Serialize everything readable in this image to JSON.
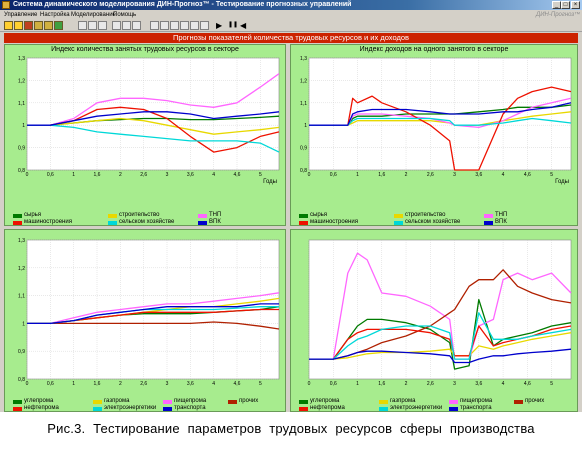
{
  "app": {
    "title": "Система динамического моделирования ДИН-Прогноз™ - Тестирование прогнозных управлений",
    "brand": "ДИН-Прогноз™"
  },
  "window_controls": {
    "minimize": "_",
    "maximize": "□",
    "close": "×"
  },
  "menu": [
    "Управление",
    "Настройка",
    "Моделирование",
    "Помощь"
  ],
  "toolbar": {
    "run": "▶",
    "pause": "❚❚",
    "back": "◀",
    "icons": [
      "open-icon",
      "save-icon",
      "print-icon",
      "settings-icon",
      "reload-icon",
      "chart-icon",
      "table-icon",
      "export-icon",
      "grid-icon",
      "list-icon",
      "copy-icon",
      "zoom-icon"
    ]
  },
  "header": "Прогнозы показателей количества трудовых ресурсов и их доходов",
  "panels": [
    {
      "title": "Индекс количества занятых трудовых ресурсов в секторе",
      "legend": [
        {
          "label": "сырья",
          "color": "#007a00"
        },
        {
          "label": "строительство",
          "color": "#e8d800"
        },
        {
          "label": "ТНП",
          "color": "#ff66ff"
        },
        {
          "label": "машиностроения",
          "color": "#ee1100"
        },
        {
          "label": "сельском хозяйстве",
          "color": "#00d8d8"
        },
        {
          "label": "ВПК",
          "color": "#0000cc"
        }
      ]
    },
    {
      "title": "Индекс доходов на одного занятого в секторе",
      "legend": [
        {
          "label": "сырья",
          "color": "#007a00"
        },
        {
          "label": "строительство",
          "color": "#e8d800"
        },
        {
          "label": "ТНП",
          "color": "#ff66ff"
        },
        {
          "label": "машиностроения",
          "color": "#ee1100"
        },
        {
          "label": "сельском хозяйстве",
          "color": "#00d8d8"
        },
        {
          "label": "ВПК",
          "color": "#0000cc"
        }
      ]
    },
    {
      "title": "",
      "legend": [
        {
          "label": "углепрома",
          "color": "#007a00"
        },
        {
          "label": "газпрома",
          "color": "#e8d800"
        },
        {
          "label": "пищепрома",
          "color": "#ff66ff"
        },
        {
          "label": "прочих",
          "color": "#b02000"
        },
        {
          "label": "нефтепрома",
          "color": "#ee1100"
        },
        {
          "label": "электроэнергетики",
          "color": "#00d8d8"
        },
        {
          "label": "транспорта",
          "color": "#0000cc"
        }
      ]
    },
    {
      "title": "",
      "legend": [
        {
          "label": "углепрома",
          "color": "#007a00"
        },
        {
          "label": "газпрома",
          "color": "#e8d800"
        },
        {
          "label": "пищепрома",
          "color": "#ff66ff"
        },
        {
          "label": "прочих",
          "color": "#b02000"
        },
        {
          "label": "нефтепрома",
          "color": "#ee1100"
        },
        {
          "label": "электроэнергетики",
          "color": "#00d8d8"
        },
        {
          "label": "транспорта",
          "color": "#0000cc"
        }
      ]
    }
  ],
  "chart_data": [
    {
      "type": "line",
      "title": "Индекс количества занятых трудовых ресурсов в секторе",
      "xlabel": "Годы",
      "ylabel": "",
      "xlim": [
        0,
        5.4
      ],
      "ylim": [
        0.8,
        1.3
      ],
      "xticks": [
        "0",
        "0,6",
        "1",
        "1,6",
        "2",
        "2,6",
        "3",
        "3,6",
        "4",
        "4,6",
        "5"
      ],
      "yticks": [
        "0,8",
        "0,9",
        "1",
        "1,1",
        "1,2",
        "1,3"
      ],
      "x": [
        0,
        0.5,
        1,
        1.5,
        2,
        2.5,
        3,
        3.5,
        4,
        4.5,
        5,
        5.4
      ],
      "series": [
        {
          "name": "сырья",
          "color": "#007a00",
          "values": [
            1,
            1,
            1.01,
            1.02,
            1.025,
            1.03,
            1.03,
            1.025,
            1.025,
            1.03,
            1.035,
            1.04
          ]
        },
        {
          "name": "строительство",
          "color": "#e8d800",
          "values": [
            1,
            1,
            1.01,
            1.02,
            1.03,
            1.02,
            1.0,
            0.98,
            0.96,
            0.97,
            0.98,
            0.99
          ]
        },
        {
          "name": "ТНП",
          "color": "#ff66ff",
          "values": [
            1,
            1,
            1.03,
            1.1,
            1.12,
            1.12,
            1.11,
            1.09,
            1.08,
            1.1,
            1.17,
            1.23
          ]
        },
        {
          "name": "машиностроения",
          "color": "#ee1100",
          "values": [
            1,
            1,
            1.02,
            1.07,
            1.08,
            1.07,
            1.03,
            0.95,
            0.88,
            0.9,
            0.95,
            0.97
          ]
        },
        {
          "name": "сельском хозяйстве",
          "color": "#00d8d8",
          "values": [
            1,
            1,
            0.99,
            0.97,
            0.96,
            0.95,
            0.94,
            0.93,
            0.93,
            0.93,
            0.92,
            0.88
          ]
        },
        {
          "name": "ВПК",
          "color": "#0000cc",
          "values": [
            1,
            1,
            1.02,
            1.04,
            1.05,
            1.06,
            1.06,
            1.05,
            1.03,
            1.04,
            1.05,
            1.06
          ]
        }
      ]
    },
    {
      "type": "line",
      "title": "Индекс доходов на одного занятого в секторе",
      "xlabel": "Годы",
      "ylabel": "",
      "xlim": [
        0,
        5.4
      ],
      "ylim": [
        0.8,
        1.3
      ],
      "xticks": [
        "0",
        "0,6",
        "1",
        "1,6",
        "2",
        "2,6",
        "3",
        "3,6",
        "4",
        "4,6",
        "5"
      ],
      "yticks": [
        "0,8",
        "0,9",
        "1",
        "1,1",
        "1,2",
        "1,3"
      ],
      "x": [
        0,
        0.5,
        0.8,
        0.9,
        1.0,
        1.3,
        1.5,
        2.0,
        2.5,
        2.9,
        3.0,
        3.5,
        4.0,
        4.3,
        4.6,
        5.0,
        5.4
      ],
      "series": [
        {
          "name": "сырья",
          "color": "#007a00",
          "values": [
            1,
            1,
            1,
            1.03,
            1.04,
            1.04,
            1.04,
            1.05,
            1.05,
            1.05,
            1.05,
            1.06,
            1.07,
            1.08,
            1.08,
            1.08,
            1.09
          ]
        },
        {
          "name": "строительство",
          "color": "#e8d800",
          "values": [
            1,
            1,
            1,
            1.01,
            1.02,
            1.02,
            1.02,
            1.02,
            1.02,
            1.01,
            1.0,
            1.0,
            1.02,
            1.03,
            1.04,
            1.05,
            1.06
          ]
        },
        {
          "name": "ТНП",
          "color": "#ff66ff",
          "values": [
            1,
            1,
            1,
            1.04,
            1.05,
            1.05,
            1.05,
            1.04,
            1.03,
            1.01,
            1.0,
            0.99,
            1.02,
            1.05,
            1.08,
            1.1,
            1.12
          ]
        },
        {
          "name": "машиностроения",
          "color": "#ee1100",
          "values": [
            1,
            1,
            1,
            1.12,
            1.1,
            1.13,
            1.1,
            1.06,
            1.0,
            0.93,
            0.8,
            0.8,
            1.05,
            1.12,
            1.15,
            1.17,
            1.15
          ]
        },
        {
          "name": "сельском хозяйстве",
          "color": "#00d8d8",
          "values": [
            1,
            1,
            1,
            1.02,
            1.03,
            1.03,
            1.03,
            1.03,
            1.03,
            1.02,
            1.0,
            1.0,
            1.01,
            1.02,
            1.03,
            1.02,
            1.01
          ]
        },
        {
          "name": "ВПК",
          "color": "#0000cc",
          "values": [
            1,
            1,
            1,
            1.05,
            1.06,
            1.07,
            1.07,
            1.07,
            1.06,
            1.05,
            1.05,
            1.05,
            1.06,
            1.06,
            1.07,
            1.08,
            1.1
          ]
        }
      ]
    },
    {
      "type": "line",
      "title": "",
      "xlabel": "",
      "ylabel": "",
      "xlim": [
        0,
        5.4
      ],
      "ylim": [
        0.8,
        1.3
      ],
      "xticks": [
        "0",
        "0,6",
        "1",
        "1,6",
        "2",
        "2,6",
        "3",
        "3,6",
        "4",
        "4,6",
        "5"
      ],
      "yticks": [
        "0,8",
        "0,9",
        "1",
        "1,1",
        "1,2",
        "1,3"
      ],
      "x": [
        0,
        0.5,
        1,
        1.5,
        2,
        2.5,
        3,
        3.5,
        4,
        4.5,
        5,
        5.4
      ],
      "series": [
        {
          "name": "углепрома",
          "color": "#007a00",
          "values": [
            1,
            1,
            1.01,
            1.02,
            1.03,
            1.035,
            1.035,
            1.035,
            1.04,
            1.045,
            1.05,
            1.06
          ]
        },
        {
          "name": "газпрома",
          "color": "#e8d800",
          "values": [
            1,
            1,
            1.01,
            1.02,
            1.03,
            1.04,
            1.05,
            1.06,
            1.06,
            1.07,
            1.08,
            1.09
          ]
        },
        {
          "name": "пищепрома",
          "color": "#ff66ff",
          "values": [
            1,
            1,
            1.02,
            1.04,
            1.05,
            1.06,
            1.07,
            1.07,
            1.08,
            1.09,
            1.1,
            1.11
          ]
        },
        {
          "name": "прочих",
          "color": "#b02000",
          "values": [
            1,
            1,
            1.0,
            1.0,
            1.0,
            1.0,
            1.0,
            1.0,
            1.005,
            1.0,
            0.99,
            0.98
          ]
        },
        {
          "name": "нефтепрома",
          "color": "#ee1100",
          "values": [
            1,
            1,
            1.01,
            1.02,
            1.03,
            1.04,
            1.04,
            1.04,
            1.04,
            1.045,
            1.05,
            1.05
          ]
        },
        {
          "name": "электроэнергетики",
          "color": "#00d8d8",
          "values": [
            1,
            1,
            1.01,
            1.03,
            1.04,
            1.05,
            1.05,
            1.05,
            1.05,
            1.055,
            1.06,
            1.06
          ]
        },
        {
          "name": "транспорта",
          "color": "#0000cc",
          "values": [
            1,
            1,
            1.01,
            1.03,
            1.04,
            1.05,
            1.06,
            1.06,
            1.06,
            1.06,
            1.07,
            1.07
          ]
        }
      ]
    },
    {
      "type": "line",
      "title": "",
      "xlabel": "",
      "ylabel": "",
      "xlim": [
        0,
        5.4
      ],
      "ylim": [
        0.7,
        2.8
      ],
      "xticks": [
        "0",
        "0,6",
        "1",
        "1,6",
        "2",
        "2,6",
        "3",
        "3,6",
        "4",
        "4,6",
        "5"
      ],
      "yticks": [],
      "x": [
        0,
        0.5,
        0.8,
        1.0,
        1.2,
        1.5,
        2.0,
        2.5,
        2.9,
        3.0,
        3.3,
        3.5,
        3.8,
        4.0,
        4.3,
        4.6,
        5.0,
        5.4
      ],
      "series": [
        {
          "name": "углепрома",
          "color": "#007a00",
          "values": [
            1,
            1,
            1.3,
            1.5,
            1.6,
            1.6,
            1.55,
            1.45,
            1.25,
            0.85,
            0.9,
            1.9,
            1.2,
            1.3,
            1.35,
            1.4,
            1.5,
            1.55
          ]
        },
        {
          "name": "газпрома",
          "color": "#e8d800",
          "values": [
            1,
            1,
            1.02,
            1.05,
            1.08,
            1.1,
            1.1,
            1.12,
            1.15,
            1.05,
            1.05,
            1.2,
            1.15,
            1.2,
            1.25,
            1.3,
            1.35,
            1.4
          ]
        },
        {
          "name": "пищепрома",
          "color": "#ff66ff",
          "values": [
            1,
            1,
            2.3,
            2.6,
            2.5,
            2.0,
            1.95,
            1.8,
            1.6,
            1.0,
            1.0,
            1.5,
            1.6,
            2.2,
            2.3,
            2.2,
            2.3,
            2.0
          ]
        },
        {
          "name": "прочих",
          "color": "#b02000",
          "values": [
            1,
            1,
            1.05,
            1.1,
            1.15,
            1.25,
            1.35,
            1.5,
            1.7,
            1.75,
            2.1,
            2.2,
            2.2,
            2.35,
            2.1,
            2.0,
            1.9,
            1.85
          ]
        },
        {
          "name": "нефтепрома",
          "color": "#ee1100",
          "values": [
            1,
            1,
            1.3,
            1.4,
            1.45,
            1.45,
            1.45,
            1.4,
            1.3,
            1.05,
            1.05,
            1.5,
            1.2,
            1.25,
            1.3,
            1.35,
            1.45,
            1.5
          ]
        },
        {
          "name": "электроэнергетики",
          "color": "#00d8d8",
          "values": [
            1,
            1,
            1.2,
            1.3,
            1.35,
            1.45,
            1.5,
            1.5,
            1.4,
            1.0,
            1.0,
            1.7,
            1.3,
            1.3,
            1.3,
            1.35,
            1.4,
            1.45
          ]
        },
        {
          "name": "транспорта",
          "color": "#0000cc",
          "values": [
            1,
            1,
            1.05,
            1.1,
            1.12,
            1.12,
            1.1,
            1.08,
            1.05,
            0.95,
            0.95,
            1.0,
            1.05,
            1.05,
            1.08,
            1.1,
            1.12,
            1.15
          ]
        }
      ]
    }
  ],
  "caption": "Рис.3. Тестирование параметров трудовых ресурсов сферы производства"
}
